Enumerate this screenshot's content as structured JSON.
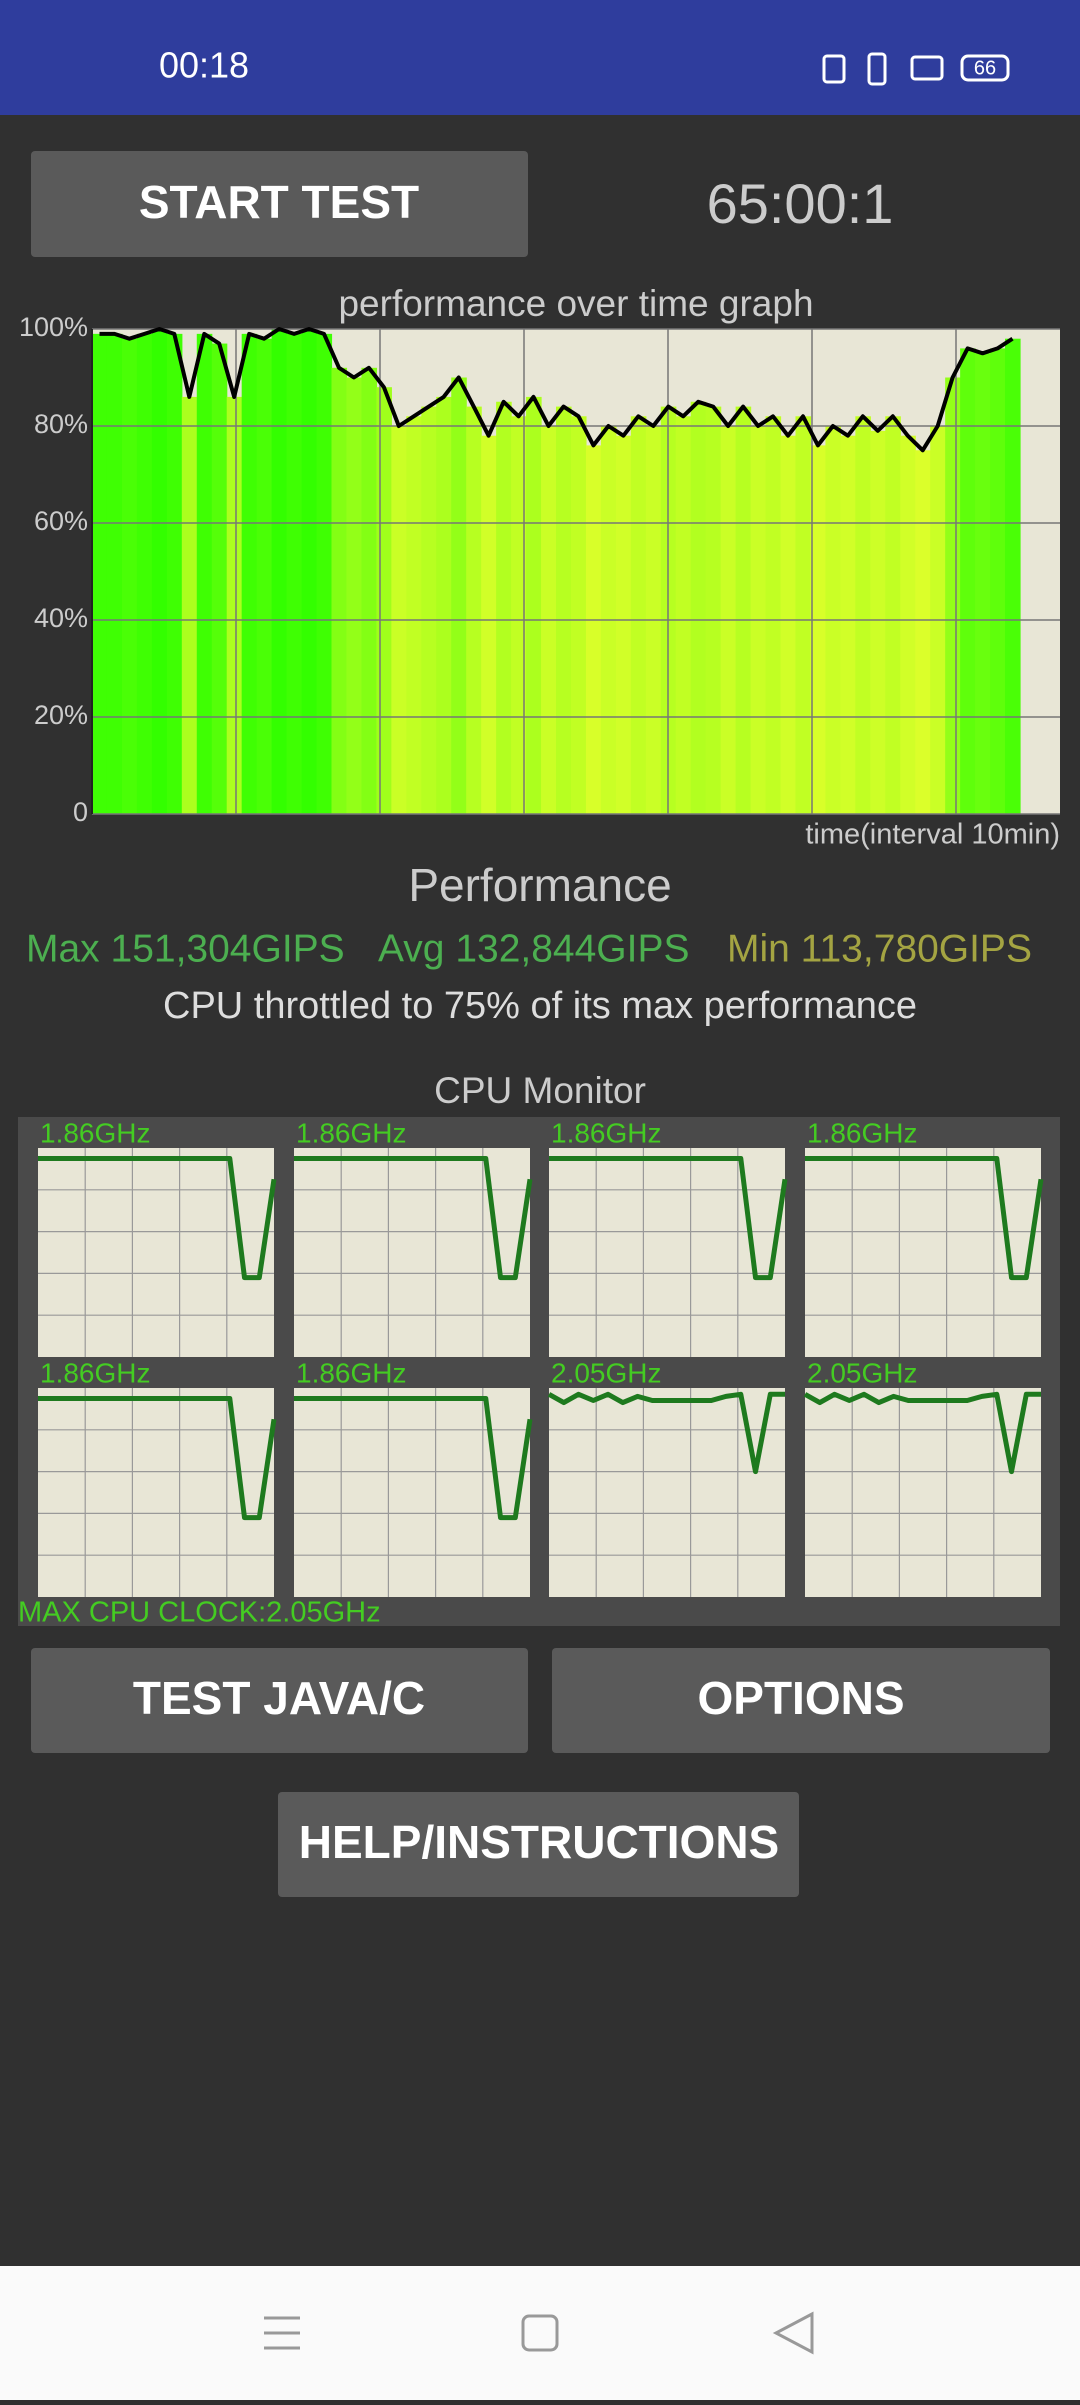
{
  "status_bar": {
    "time": "00:18",
    "battery": "66"
  },
  "timer": "65:00:1",
  "buttons": {
    "start": "START TEST",
    "test": "TEST JAVA/C",
    "options": "OPTIONS",
    "help": "HELP/INSTRUCTIONS"
  },
  "chart_data": {
    "type": "line",
    "title": "performance over time graph",
    "xlabel": "time(interval 10min)",
    "ylim": [
      0,
      100
    ],
    "yticks": [
      0,
      {
        "value": 20,
        "label": "20%"
      },
      {
        "value": 40,
        "label": "40%"
      },
      {
        "value": 60,
        "label": "60%"
      },
      {
        "value": 80,
        "label": "80%"
      },
      {
        "value": 100,
        "label": "100%"
      }
    ],
    "grid": true,
    "line_color": "#000000",
    "fill_colors": [
      "#ffff33",
      "#33ff00"
    ],
    "values": [
      99,
      99,
      98,
      99,
      100,
      99,
      86,
      99,
      97,
      86,
      99,
      98,
      100,
      99,
      100,
      99,
      92,
      90,
      92,
      88,
      80,
      82,
      84,
      86,
      90,
      84,
      78,
      85,
      82,
      86,
      80,
      84,
      82,
      76,
      80,
      78,
      82,
      80,
      84,
      82,
      85,
      84,
      80,
      84,
      80,
      82,
      78,
      82,
      76,
      80,
      78,
      82,
      79,
      82,
      78,
      75,
      80,
      90,
      96,
      95,
      96,
      98
    ]
  },
  "performance": {
    "title": "Performance",
    "max": "Max 151,304GIPS",
    "avg": "Avg 132,844GIPS",
    "min": "Min 113,780GIPS",
    "throttle": "CPU throttled to 75% of its max performance"
  },
  "cpu_monitor": {
    "title": "CPU Monitor",
    "ylim": [
      0,
      100
    ],
    "line_color": "#1e7a1e",
    "cores": [
      {
        "label": "1.86GHz",
        "values": [
          95,
          95,
          95,
          95,
          95,
          95,
          95,
          95,
          95,
          95,
          95,
          95,
          95,
          95,
          38,
          38,
          85
        ]
      },
      {
        "label": "1.86GHz",
        "values": [
          95,
          95,
          95,
          95,
          95,
          95,
          95,
          95,
          95,
          95,
          95,
          95,
          95,
          95,
          38,
          38,
          85
        ]
      },
      {
        "label": "1.86GHz",
        "values": [
          95,
          95,
          95,
          95,
          95,
          95,
          95,
          95,
          95,
          95,
          95,
          95,
          95,
          95,
          38,
          38,
          85
        ]
      },
      {
        "label": "1.86GHz",
        "values": [
          95,
          95,
          95,
          95,
          95,
          95,
          95,
          95,
          95,
          95,
          95,
          95,
          95,
          95,
          38,
          38,
          85
        ]
      },
      {
        "label": "1.86GHz",
        "values": [
          95,
          95,
          95,
          95,
          95,
          95,
          95,
          95,
          95,
          95,
          95,
          95,
          95,
          95,
          38,
          38,
          85
        ]
      },
      {
        "label": "1.86GHz",
        "values": [
          95,
          95,
          95,
          95,
          95,
          95,
          95,
          95,
          95,
          95,
          95,
          95,
          95,
          95,
          38,
          38,
          85
        ]
      },
      {
        "label": "2.05GHz",
        "values": [
          97,
          93,
          97,
          94,
          97,
          93,
          96,
          94,
          94,
          94,
          94,
          94,
          96,
          97,
          60,
          97,
          97
        ]
      },
      {
        "label": "2.05GHz",
        "values": [
          97,
          93,
          97,
          94,
          97,
          93,
          96,
          94,
          94,
          94,
          94,
          94,
          96,
          97,
          60,
          97,
          97
        ]
      }
    ],
    "max_clock": "MAX CPU CLOCK:2.05GHz"
  }
}
